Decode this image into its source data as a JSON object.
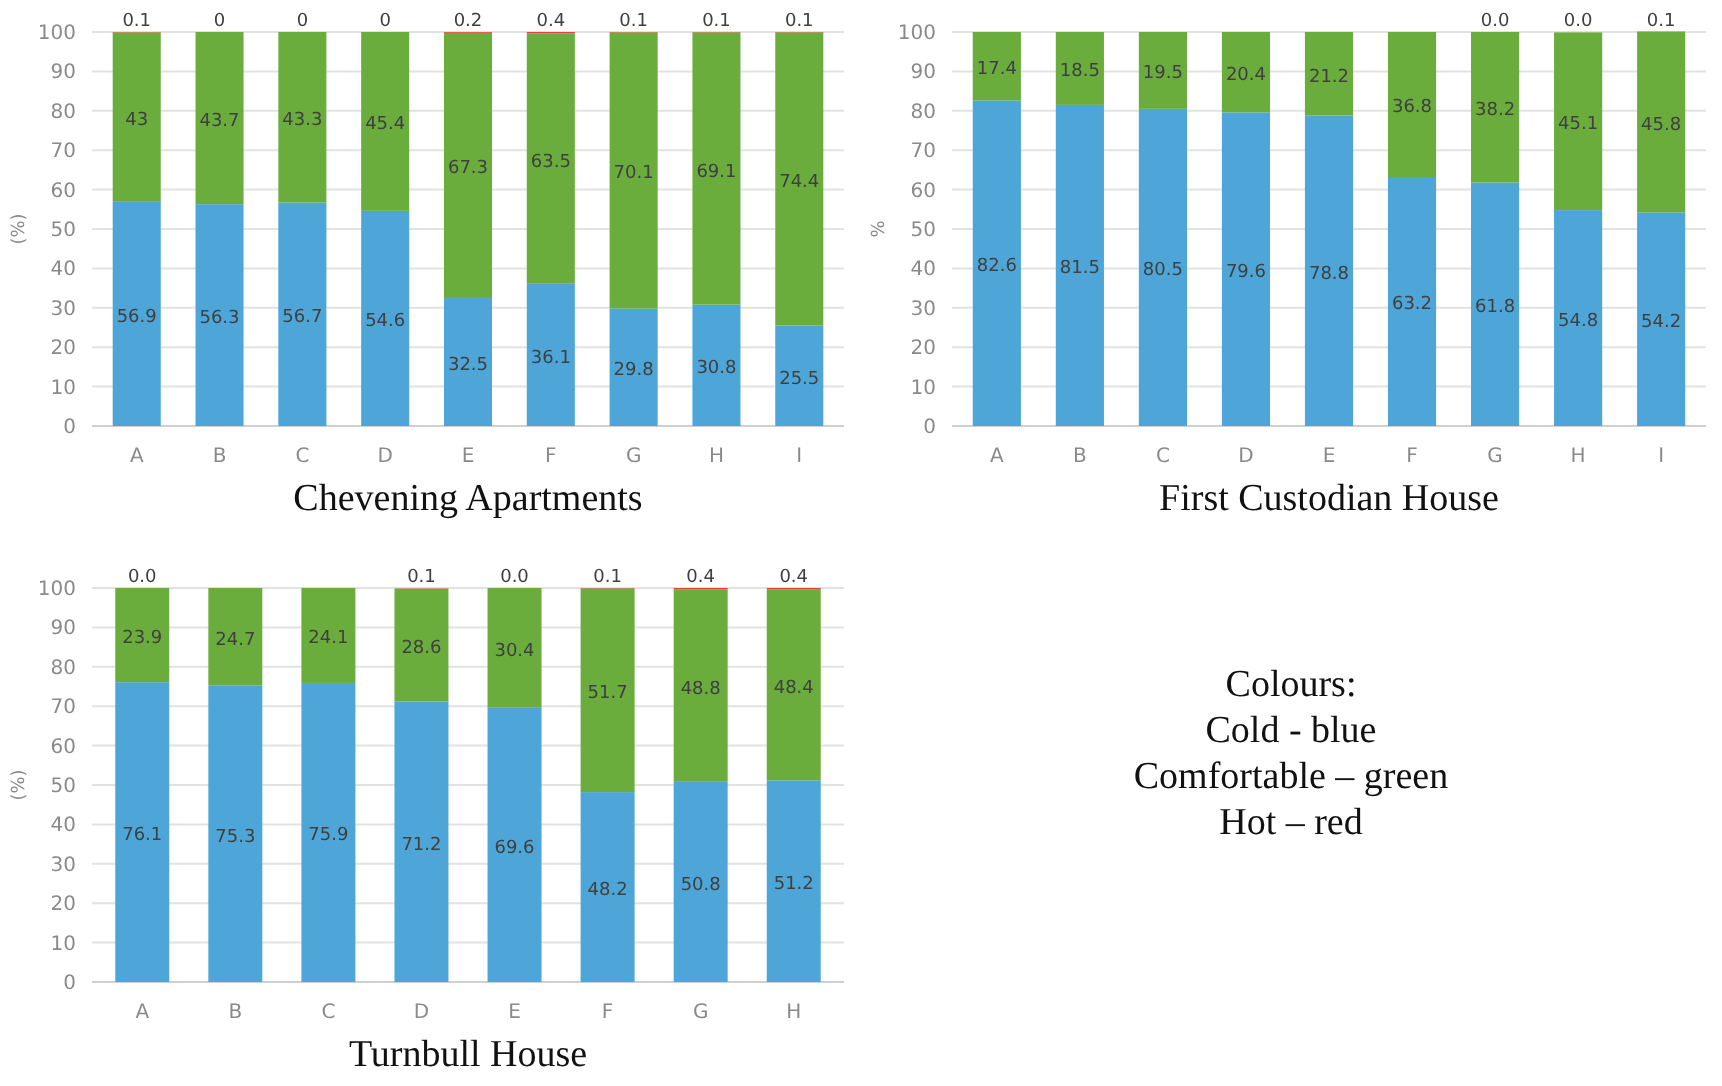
{
  "chart_data": [
    {
      "type": "bar",
      "title": "Chevening Apartments",
      "ylabel": "(%)",
      "categories": [
        "A",
        "B",
        "C",
        "D",
        "E",
        "F",
        "G",
        "H",
        "I"
      ],
      "stacked": true,
      "ylim": [
        0,
        100
      ],
      "yticks": [
        0,
        10,
        20,
        30,
        40,
        50,
        60,
        70,
        80,
        90,
        100
      ],
      "grid": "y",
      "series": [
        {
          "color": "#4ea6d8",
          "values": [
            56.9,
            56.3,
            56.7,
            54.6,
            32.5,
            36.1,
            29.8,
            30.8,
            25.5
          ],
          "value_labels": [
            "56.9",
            "56.3",
            "56.7",
            "54.6",
            "32.5",
            "36.1",
            "29.8",
            "30.8",
            "25.5"
          ]
        },
        {
          "color": "#6aad3d",
          "values": [
            43,
            43.7,
            43.3,
            45.4,
            67.3,
            63.5,
            70.1,
            69.1,
            74.4
          ],
          "value_labels": [
            "43",
            "43.7",
            "43.3",
            "45.4",
            "67.3",
            "63.5",
            "70.1",
            "69.1",
            "74.4"
          ]
        },
        {
          "color": "#e8413a",
          "values": [
            0.1,
            0,
            0,
            0,
            0.2,
            0.4,
            0.1,
            0.1,
            0.1
          ],
          "value_labels": [
            "0.1",
            "0",
            "0",
            "0",
            "0.2",
            "0.4",
            "0.1",
            "0.1",
            "0.1"
          ]
        }
      ]
    },
    {
      "type": "bar",
      "title": "First Custodian House",
      "ylabel": "%",
      "categories": [
        "A",
        "B",
        "C",
        "D",
        "E",
        "F",
        "G",
        "H",
        "I"
      ],
      "stacked": true,
      "ylim": [
        0,
        100
      ],
      "yticks": [
        0,
        10,
        20,
        30,
        40,
        50,
        60,
        70,
        80,
        90,
        100
      ],
      "grid": "y",
      "series": [
        {
          "color": "#4ea6d8",
          "values": [
            82.6,
            81.5,
            80.5,
            79.6,
            78.8,
            63.2,
            61.8,
            54.8,
            54.2
          ],
          "value_labels": [
            "82.6",
            "81.5",
            "80.5",
            "79.6",
            "78.8",
            "63.2",
            "61.8",
            "54.8",
            "54.2"
          ]
        },
        {
          "color": "#6aad3d",
          "values": [
            17.4,
            18.5,
            19.5,
            20.4,
            21.2,
            36.8,
            38.2,
            45.1,
            45.8
          ],
          "value_labels": [
            "17.4",
            "18.5",
            "19.5",
            "20.4",
            "21.2",
            "36.8",
            "38.2",
            "45.1",
            "45.8"
          ]
        },
        {
          "color": "#e8413a",
          "values": [
            0,
            0,
            0,
            0,
            0,
            0,
            0,
            0,
            0.1
          ],
          "value_labels": [
            null,
            null,
            null,
            null,
            null,
            null,
            "0.0",
            "0.0",
            "0.1"
          ]
        }
      ]
    },
    {
      "type": "bar",
      "title": "Turnbull House",
      "ylabel": "(%)",
      "categories": [
        "A",
        "B",
        "C",
        "D",
        "E",
        "F",
        "G",
        "H"
      ],
      "stacked": true,
      "ylim": [
        0,
        100
      ],
      "yticks": [
        0,
        10,
        20,
        30,
        40,
        50,
        60,
        70,
        80,
        90,
        100
      ],
      "grid": "y",
      "series": [
        {
          "color": "#4ea6d8",
          "values": [
            76.1,
            75.3,
            75.9,
            71.2,
            69.6,
            48.2,
            50.8,
            51.2
          ],
          "value_labels": [
            "76.1",
            "75.3",
            "75.9",
            "71.2",
            "69.6",
            "48.2",
            "50.8",
            "51.2"
          ]
        },
        {
          "color": "#6aad3d",
          "values": [
            23.9,
            24.7,
            24.1,
            28.6,
            30.4,
            51.7,
            48.8,
            48.4
          ],
          "value_labels": [
            "23.9",
            "24.7",
            "24.1",
            "28.6",
            "30.4",
            "51.7",
            "48.8",
            "48.4"
          ]
        },
        {
          "color": "#e8413a",
          "values": [
            0,
            0,
            0,
            0.1,
            0,
            0.1,
            0.4,
            0.4
          ],
          "value_labels": [
            "0.0",
            null,
            null,
            "0.1",
            "0.0",
            "0.1",
            "0.4",
            "0.4"
          ]
        }
      ]
    },
    {
      "type": "other",
      "title": "Colours:",
      "annotations": [
        "Cold - blue",
        "Comfortable – green",
        "Hot – red"
      ]
    }
  ]
}
